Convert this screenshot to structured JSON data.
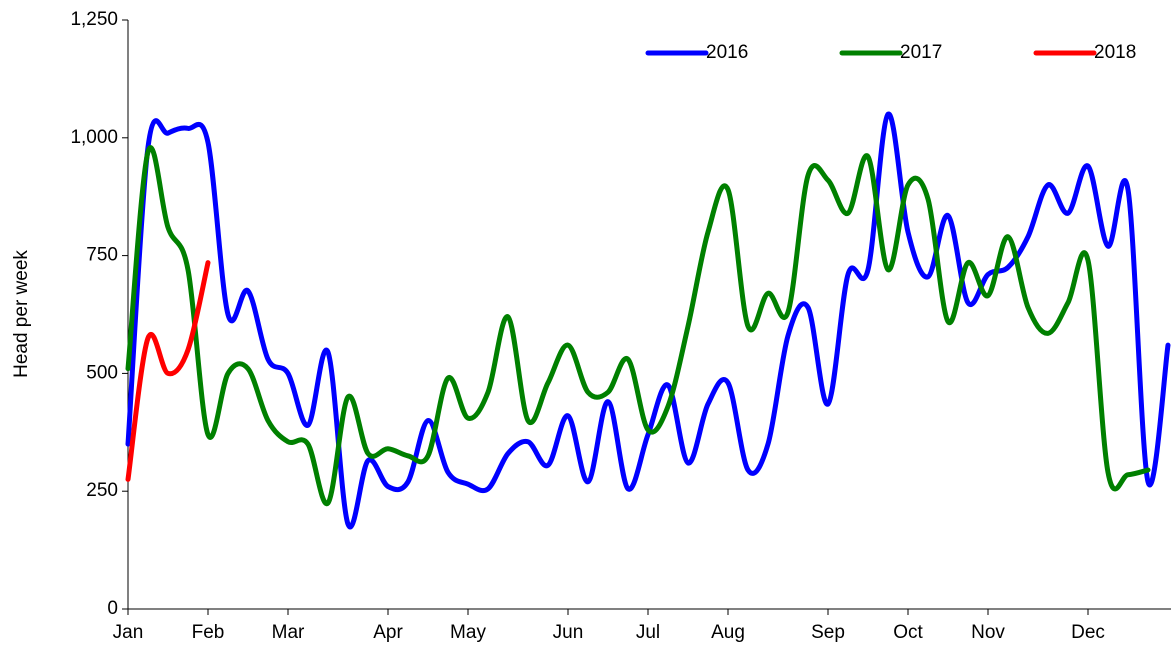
{
  "chart_data": {
    "type": "line",
    "y_label": "Head per week",
    "categories": [
      "Jan",
      null,
      null,
      null,
      "Feb",
      null,
      null,
      null,
      "Mar",
      null,
      null,
      null,
      null,
      "Apr",
      null,
      null,
      null,
      "May",
      null,
      null,
      null,
      null,
      "Jun",
      null,
      null,
      null,
      "Jul",
      null,
      null,
      null,
      "Aug",
      null,
      null,
      null,
      null,
      "Sep",
      null,
      null,
      null,
      "Oct",
      null,
      null,
      null,
      "Nov",
      null,
      null,
      null,
      null,
      "Dec",
      null,
      null,
      null,
      null
    ],
    "series": [
      {
        "name": "2016",
        "color": "#0000ff",
        "values": [
          350,
          980,
          1010,
          1020,
          990,
          625,
          675,
          530,
          500,
          390,
          545,
          180,
          315,
          260,
          270,
          400,
          290,
          265,
          255,
          330,
          355,
          305,
          410,
          270,
          440,
          255,
          370,
          475,
          310,
          435,
          480,
          295,
          350,
          580,
          640,
          435,
          710,
          720,
          1050,
          800,
          705,
          835,
          650,
          710,
          725,
          790,
          900,
          840,
          940,
          770,
          890,
          270,
          560
        ]
      },
      {
        "name": "2017",
        "color": "#008000",
        "values": [
          510,
          970,
          810,
          720,
          370,
          500,
          510,
          400,
          355,
          350,
          225,
          450,
          330,
          340,
          325,
          325,
          490,
          405,
          460,
          620,
          400,
          480,
          560,
          460,
          460,
          530,
          380,
          430,
          600,
          800,
          890,
          600,
          670,
          630,
          920,
          910,
          840,
          960,
          720,
          900,
          870,
          610,
          735,
          665,
          790,
          640,
          585,
          650,
          740,
          290,
          285,
          295,
          null
        ]
      },
      {
        "name": "2018",
        "color": "#ff0000",
        "values": [
          275,
          575,
          500,
          550,
          735,
          null,
          null,
          null,
          null,
          null,
          null,
          null,
          null,
          null,
          null,
          null,
          null,
          null,
          null,
          null,
          null,
          null,
          null,
          null,
          null,
          null,
          null,
          null,
          null,
          null,
          null,
          null,
          null,
          null,
          null,
          null,
          null,
          null,
          null,
          null,
          null,
          null,
          null,
          null,
          null,
          null,
          null,
          null,
          null,
          null,
          null,
          null,
          null
        ]
      }
    ],
    "ylim": [
      0,
      1250
    ],
    "yticks": [
      0,
      250,
      500,
      750,
      {
        "value": 1000,
        "label": "1,000"
      },
      {
        "value": 1250,
        "label": "1,250"
      }
    ],
    "grid": false,
    "legend": "top-right"
  }
}
